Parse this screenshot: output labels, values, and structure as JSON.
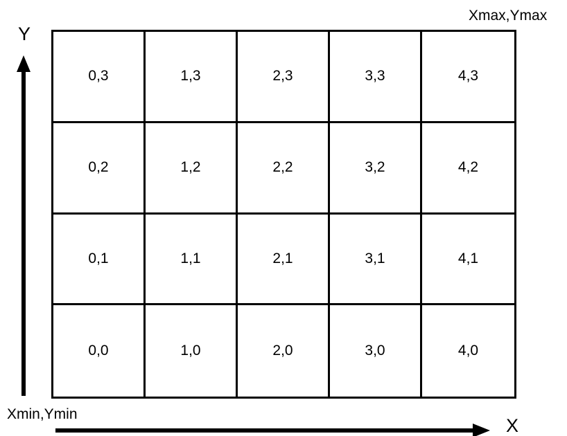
{
  "corners": {
    "top_right": "Xmax,Ymax",
    "bottom_left": "Xmin,Ymin"
  },
  "axes": {
    "x_label": "X",
    "y_label": "Y"
  },
  "grid": {
    "rows": [
      [
        "0,3",
        "1,3",
        "2,3",
        "3,3",
        "4,3"
      ],
      [
        "0,2",
        "1,2",
        "2,2",
        "3,2",
        "4,2"
      ],
      [
        "0,1",
        "1,1",
        "2,1",
        "3,1",
        "4,1"
      ],
      [
        "0,0",
        "1,0",
        "2,0",
        "3,0",
        "4,0"
      ]
    ]
  },
  "colors": {
    "line": "#000000",
    "background": "#ffffff"
  }
}
